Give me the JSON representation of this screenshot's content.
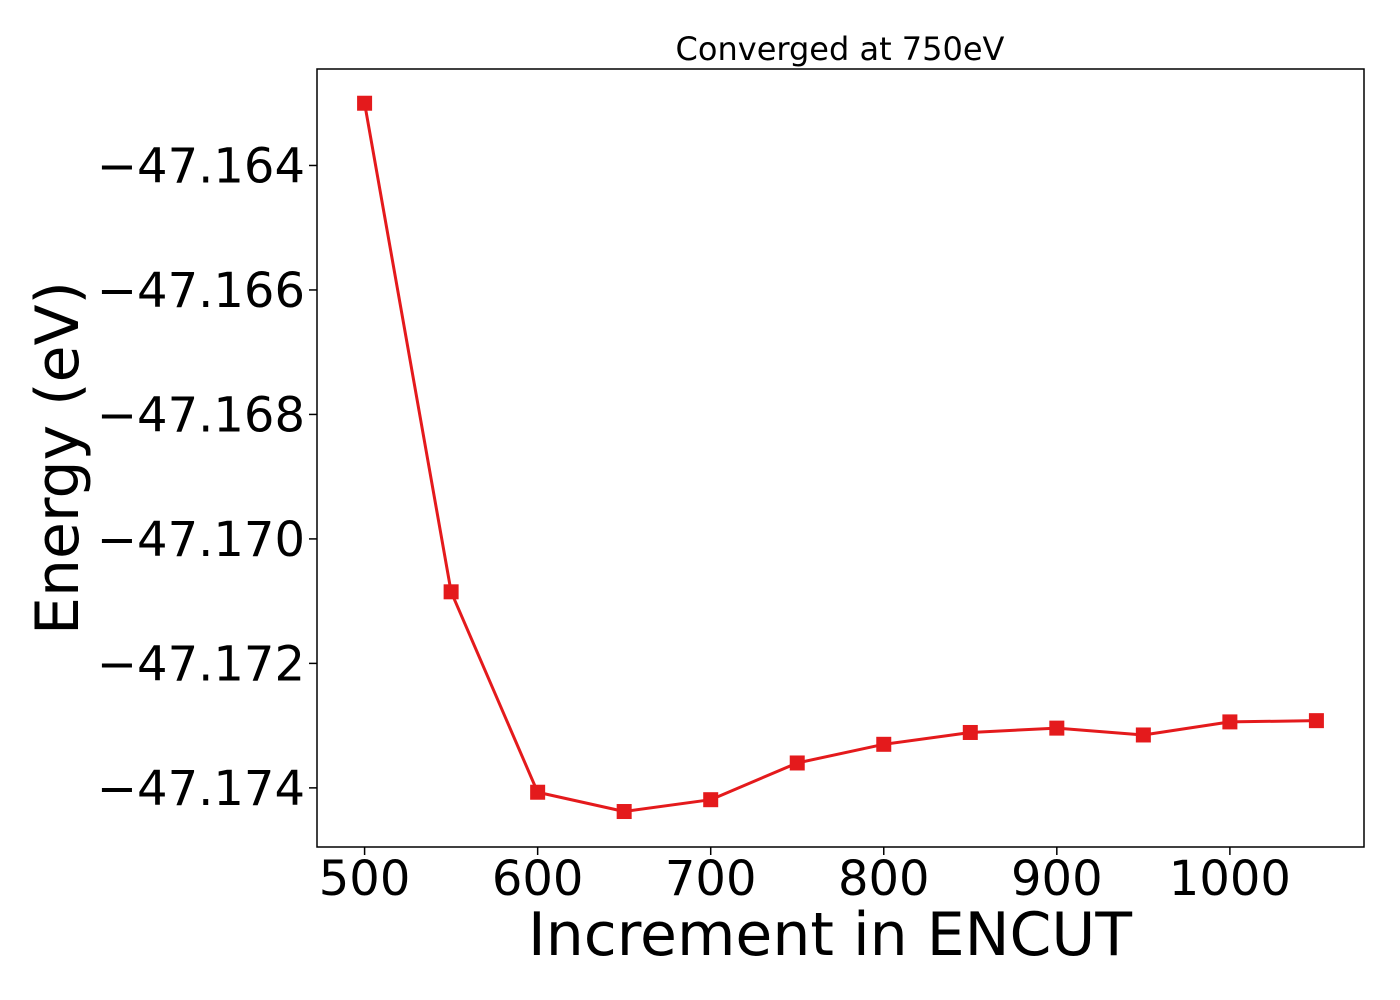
{
  "chart_data": {
    "type": "line",
    "title": "Converged at 750eV",
    "xlabel": "Increment in ENCUT",
    "ylabel": "Energy (eV)",
    "xlim": [
      472.5,
      1077.5
    ],
    "ylim": [
      -47.17495,
      -47.16245
    ],
    "x_ticks": [
      500,
      600,
      700,
      800,
      900,
      1000
    ],
    "x_tick_labels": [
      "500",
      "600",
      "700",
      "800",
      "900",
      "1000"
    ],
    "y_ticks": [
      -47.164,
      -47.166,
      -47.168,
      -47.17,
      -47.172,
      -47.174
    ],
    "y_tick_labels": [
      "−47.164",
      "−47.166",
      "−47.168",
      "−47.170",
      "−47.172",
      "−47.174"
    ],
    "grid": false,
    "series": [
      {
        "color": "#e41a1c",
        "marker": "square",
        "x": [
          500,
          550,
          600,
          650,
          700,
          750,
          800,
          850,
          900,
          950,
          1000,
          1050
        ],
        "y": [
          -47.163,
          -47.17085,
          -47.17407,
          -47.17438,
          -47.17419,
          -47.1736,
          -47.1733,
          -47.17311,
          -47.17304,
          -47.17315,
          -47.17294,
          -47.17292
        ]
      }
    ]
  }
}
